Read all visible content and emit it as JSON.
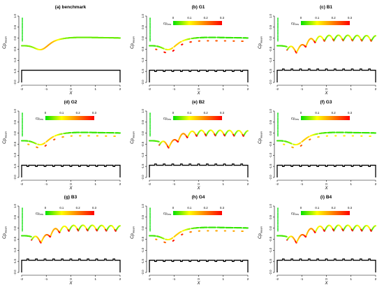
{
  "figure": {
    "panels": [
      {
        "title": "(a) benchmark",
        "pattern": "smooth",
        "legend": false,
        "legend_x_offset": 0,
        "max_color": 0.15
      },
      {
        "title": "(b) G1",
        "pattern": "groove",
        "legend": true,
        "legend_x_offset": 0,
        "max_color": 0.35
      },
      {
        "title": "(c) B1",
        "pattern": "bump",
        "legend": true,
        "legend_x_offset": 0,
        "max_color": 0.25
      },
      {
        "title": "(d) G2",
        "pattern": "groove",
        "legend": true,
        "legend_x_offset": 0,
        "max_color": 0.2
      },
      {
        "title": "(e) B2",
        "pattern": "bump",
        "legend": true,
        "legend_x_offset": 0,
        "max_color": 0.35
      },
      {
        "title": "(f) G3",
        "pattern": "groove",
        "legend": true,
        "legend_x_offset": 0,
        "max_color": 0.15
      },
      {
        "title": "(g) B3",
        "pattern": "bump",
        "legend": true,
        "legend_x_offset": 0,
        "max_color": 0.3
      },
      {
        "title": "(h) G4",
        "pattern": "groove",
        "legend": true,
        "legend_x_offset": 0,
        "max_color": 0.25
      },
      {
        "title": "(i) B4",
        "pattern": "bump",
        "legend": true,
        "legend_x_offset": 0,
        "max_color": 0.35
      }
    ],
    "colors": {
      "green": "#00e000",
      "yellow": "#ffff00",
      "orange": "#ff8000",
      "red": "#ff0000",
      "axis": "#000000"
    }
  },
  "chart_data": {
    "type": "scatter",
    "x_label": "X",
    "y_label": "Cp_mean",
    "xlim": [
      -2,
      2
    ],
    "ylim": [
      -2.0,
      1.0
    ],
    "x_ticks": [
      "-2",
      "-1",
      "0",
      "1",
      "2"
    ],
    "y_ticks": [
      "1.0",
      "0.5",
      "0.0",
      "-0.5",
      "-1.0",
      "-1.5",
      "-2.0"
    ],
    "legend": {
      "label": "Cp_rms",
      "ticks": [
        "0",
        "0.1",
        "0.2",
        "0.3"
      ],
      "range": [
        0,
        0.3
      ]
    },
    "panels": [
      {
        "title": "(a) benchmark"
      },
      {
        "title": "(b) G1"
      },
      {
        "title": "(c) B1"
      },
      {
        "title": "(d) G2"
      },
      {
        "title": "(e) B2"
      },
      {
        "title": "(f) G3"
      },
      {
        "title": "(g) B3"
      },
      {
        "title": "(h) G4"
      },
      {
        "title": "(i) B4"
      }
    ]
  }
}
